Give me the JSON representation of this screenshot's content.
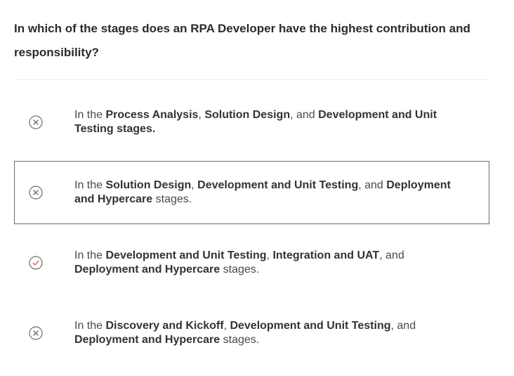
{
  "question": {
    "text": "In which of the stages does an RPA Developer have the highest contribution and responsibility?"
  },
  "colors": {
    "incorrect_icon": "#6b6b6b",
    "correct_icon": "#e8573c",
    "selected_border": "#6b6b6b"
  },
  "options": [
    {
      "status_icon": "x-circle-icon",
      "selected": false,
      "parts": [
        {
          "t": "In the ",
          "b": false
        },
        {
          "t": "Process Analysis",
          "b": true
        },
        {
          "t": ", ",
          "b": false
        },
        {
          "t": "Solution Design",
          "b": true
        },
        {
          "t": ",  and ",
          "b": false
        },
        {
          "t": "Development and Unit Testing stages.",
          "b": true
        }
      ]
    },
    {
      "status_icon": "x-circle-icon",
      "selected": true,
      "parts": [
        {
          "t": "In the ",
          "b": false
        },
        {
          "t": "Solution Design",
          "b": true
        },
        {
          "t": ",  ",
          "b": false
        },
        {
          "t": "Development and Unit Testing",
          "b": true
        },
        {
          "t": ", and ",
          "b": false
        },
        {
          "t": "Deployment and Hypercare",
          "b": true
        },
        {
          "t": " stages.",
          "b": false
        }
      ]
    },
    {
      "status_icon": "check-circle-icon",
      "selected": false,
      "parts": [
        {
          "t": "In the ",
          "b": false
        },
        {
          "t": "Development and Unit Testing",
          "b": true
        },
        {
          "t": ", ",
          "b": false
        },
        {
          "t": "Integration and UAT",
          "b": true
        },
        {
          "t": ", and ",
          "b": false
        },
        {
          "t": "Deployment and Hypercare",
          "b": true
        },
        {
          "t": " stages.",
          "b": false
        }
      ]
    },
    {
      "status_icon": "x-circle-icon",
      "selected": false,
      "parts": [
        {
          "t": "In the ",
          "b": false
        },
        {
          "t": "Discovery and Kickoff",
          "b": true
        },
        {
          "t": ", ",
          "b": false
        },
        {
          "t": "Development and Unit Testing",
          "b": true
        },
        {
          "t": ", and ",
          "b": false
        },
        {
          "t": "Deployment and Hypercare",
          "b": true
        },
        {
          "t": " stages.",
          "b": false
        }
      ]
    }
  ]
}
